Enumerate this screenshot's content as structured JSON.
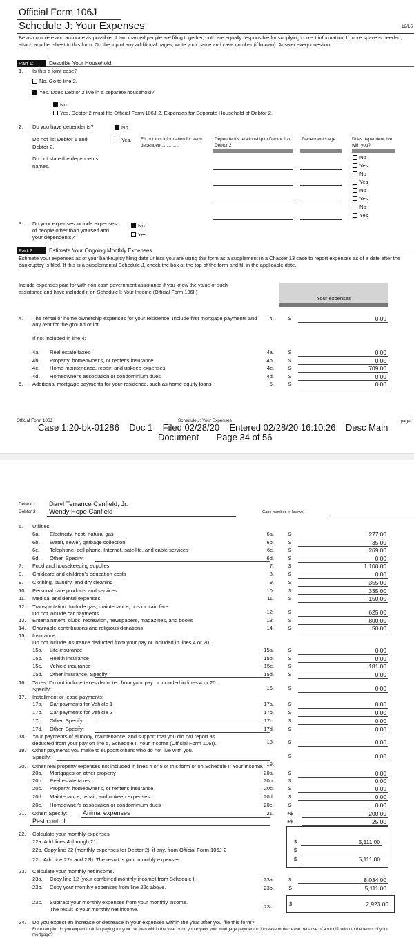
{
  "page1": {
    "form_id": "Official Form 106J",
    "title": "Schedule J: Your Expenses",
    "version": "12/15",
    "intro": "Be as complete and accurate as possible. If two married people are filing together, both are equally responsible for supplying correct information. If more space is needed, attach another sheet to this form. On the top of any additional pages, write your name and case number (if known). Answer every question.",
    "part1": {
      "tag": "Part 1:",
      "title": "Describe Your Household"
    },
    "q1": {
      "num": "1.",
      "text": "Is this a joint case?",
      "opt_no": "No. Go to line 2.",
      "opt_yes": "Yes. Does Debtor 2 live in a separate household?",
      "sub_no": "No",
      "sub_yes": "Yes. Debtor 2 must file Official Form 106J-2, Expenses for Separate Household of Debtor 2."
    },
    "q2": {
      "num": "2.",
      "text": "Do you have dependents?",
      "opt_no": "No",
      "note1": "Do not list Debtor 1 and Debtor 2.",
      "opt_yes": "Yes.",
      "fill": "Fill out this information for each dependent..............",
      "col_rel": "Dependent's relationship to Debtor 1 or Debtor 2",
      "col_age": "Dependent's age",
      "col_live": "Does dependent live with you?",
      "note2": "Do not state the dependents names.",
      "no": "No",
      "yes": "Yes"
    },
    "q3": {
      "num": "3.",
      "text": "Do your expenses include expenses of people other than yourself and your dependents?",
      "opt_no": "No",
      "opt_yes": "Yes"
    },
    "part2": {
      "tag": "Part 2:",
      "title": "Estimate Your Ongoing Monthly Expenses"
    },
    "part2_intro": "Estimate your expenses as of your bankruptcy filing date unless you are using this form as a supplement in a Chapter 13 case to report expenses as of a date after the bankruptcy is filed. If this is a supplemental Schedule J, check the box at the top of the form and fill in the applicable date.",
    "include_note": "Include expenses paid for with non-cash government assistance if you know the value of such assistance and have included it on Schedule I: Your Income (Official Form 106I.)",
    "your_expenses": "Your expenses",
    "not_included": "If not included in line 4:",
    "lines": [
      {
        "num": "4.",
        "label": "The rental or home ownership expenses for your residence. Include first mortgage payments and any rent for the ground or lot.",
        "ref": "4.",
        "cur": "$",
        "amount": "0.00"
      },
      {
        "sub": "4a.",
        "label": "Real estate taxes",
        "ref": "4a.",
        "cur": "$",
        "amount": "0.00"
      },
      {
        "sub": "4b.",
        "label": "Property, homeowner's, or renter's insurance",
        "ref": "4b.",
        "cur": "$",
        "amount": "0.00"
      },
      {
        "sub": "4c.",
        "label": "Home maintenance, repair, and upkeep expenses",
        "ref": "4c.",
        "cur": "$",
        "amount": "709.00"
      },
      {
        "sub": "4d.",
        "label": "Homeowner's association or condominium dues",
        "ref": "4d.",
        "cur": "$",
        "amount": "0.00"
      },
      {
        "num": "5.",
        "label": "Additional mortgage payments for your residence, such as home equity loans",
        "ref": "5.",
        "cur": "$",
        "amount": "0.00"
      }
    ],
    "footer": {
      "left": "Official Form 106J",
      "center": "Schedule J: Your Expenses",
      "right": "page 1"
    },
    "stamp": {
      "line1": "Case 1:20-bk-01286    Doc 1    Filed 02/28/20    Entered 02/28/20 16:10:26    Desc Main",
      "line2": "Document       Page 34 of 56"
    }
  },
  "page2": {
    "debtor1_label": "Debtor 1",
    "debtor1": "Daryl Terrance Canfield, Jr.",
    "debtor2_label": "Debtor 2",
    "debtor2": "Wendy Hope Canfield",
    "case_number_label": "Case number (if known)",
    "lines": [
      {
        "num": "6.",
        "label": "Utilities:"
      },
      {
        "sub": "6a.",
        "label": "Electricity, heat, natural gas",
        "ref": "6a.",
        "cur": "$",
        "amount": "277.00"
      },
      {
        "sub": "6b.",
        "label": "Water, sewer, garbage collection",
        "ref": "6b.",
        "cur": "$",
        "amount": "35.00"
      },
      {
        "sub": "6c.",
        "label": "Telephone, cell phone, Internet, satellite, and cable services",
        "ref": "6c.",
        "cur": "$",
        "amount": "269.00"
      },
      {
        "sub": "6d.",
        "label": "Other. Specify:",
        "spec": true,
        "ref": "6d.",
        "cur": "$",
        "amount": "0.00"
      },
      {
        "num": "7.",
        "label": "Food and housekeeping supplies",
        "ref": "7.",
        "cur": "$",
        "amount": "1,100.00"
      },
      {
        "num": "8.",
        "label": "Childcare and children's education costs",
        "ref": "8.",
        "cur": "$",
        "amount": "0.00"
      },
      {
        "num": "9.",
        "label": "Clothing, laundry, and dry cleaning",
        "ref": "9.",
        "cur": "$",
        "amount": "355.00"
      },
      {
        "num": "10.",
        "label": "Personal care products and services",
        "ref": "10.",
        "cur": "$",
        "amount": "335.00"
      },
      {
        "num": "11.",
        "label": "Medical and dental expenses",
        "ref": "11.",
        "cur": "$",
        "amount": "150.00"
      },
      {
        "num": "12.",
        "label": "Transportation. Include gas, maintenance, bus or train fare.",
        "label2": "Do not include car payments.",
        "ref": "12.",
        "cur": "$",
        "amount": "625.00"
      },
      {
        "num": "13.",
        "label": "Entertainment, clubs, recreation, newspapers, magazines, and books",
        "ref": "13.",
        "cur": "$",
        "amount": "800.00"
      },
      {
        "num": "14.",
        "label": "Charitable contributions and religious donations",
        "ref": "14.",
        "cur": "$",
        "amount": "50.00"
      },
      {
        "num": "15.",
        "label": "Insurance.",
        "label2": "Do not include insurance deducted from your pay or included in lines 4 or 20."
      },
      {
        "sub": "15a.",
        "label": "Life insurance",
        "ref": "15a.",
        "cur": "$",
        "amount": "0.00"
      },
      {
        "sub": "15b.",
        "label": "Health insurance",
        "ref": "15b.",
        "cur": "$",
        "amount": "0.00"
      },
      {
        "sub": "15c.",
        "label": "Vehicle insurance",
        "ref": "15c.",
        "cur": "$",
        "amount": "181.00"
      },
      {
        "sub": "15d.",
        "label": "Other insurance. Specify:",
        "spec": true,
        "ref": "15d.",
        "cur": "$",
        "amount": "0.00"
      },
      {
        "num": "16.",
        "label": "Taxes. Do not include taxes deducted from your pay or included in lines 4 or 20.",
        "label2": "Specify:",
        "spec2": true,
        "ref": "16.",
        "cur": "$",
        "amount": "0.00"
      },
      {
        "num": "17.",
        "label": "Installment or lease payments:"
      },
      {
        "sub": "17a.",
        "label": "Car payments for Vehicle 1",
        "ref": "17a.",
        "cur": "$",
        "amount": "0.00"
      },
      {
        "sub": "17b.",
        "label": "Car payments for Vehicle 2",
        "ref": "17b.",
        "cur": "$",
        "amount": "0.00"
      },
      {
        "sub": "17c.",
        "label": "Other. Specify:",
        "spec": true,
        "ref": "17c.",
        "cur": "$",
        "amount": "0.00"
      },
      {
        "sub": "17d.",
        "label": "Other. Specify:",
        "spec": true,
        "ref": "17d.",
        "cur": "$",
        "amount": "0.00"
      },
      {
        "num": "18.",
        "label": "Your payments of alimony, maintenance, and support that you did not report as",
        "label2": "deducted from your pay on line 5, Schedule I, Your Income (Official Form 106I).",
        "ref": "18.",
        "cur": "$",
        "amount": "0.00"
      },
      {
        "num": "19.",
        "label": "Other payments you make to support others who do not live with you.",
        "label2": "Specify:",
        "spec2": true,
        "ref": "19.",
        "cur": "$",
        "amount": "0.00"
      },
      {
        "num": "20.",
        "label": "Other real property expenses not included in lines 4 or 5 of this form or on Schedule I: Your Income."
      },
      {
        "sub": "20a.",
        "label": "Mortgages on other property",
        "ref": "20a.",
        "cur": "$",
        "amount": "0.00"
      },
      {
        "sub": "20b.",
        "label": "Real estate taxes",
        "ref": "20b.",
        "cur": "$",
        "amount": "0.00"
      },
      {
        "sub": "20c.",
        "label": "Property, homeowner's, or renter's insurance",
        "ref": "20c.",
        "cur": "$",
        "amount": "0.00"
      },
      {
        "sub": "20d.",
        "label": "Maintenance, repair, and upkeep expenses",
        "ref": "20d.",
        "cur": "$",
        "amount": "0.00"
      },
      {
        "sub": "20e.",
        "label": "Homeowner's association or condominium dues",
        "ref": "20e.",
        "cur": "$",
        "amount": "0.00"
      },
      {
        "num": "21.",
        "label": "Other: Specify:",
        "specval": "Animal expenses",
        "ref": "21.",
        "cur": "+$",
        "amount": "200.00"
      },
      {
        "specval2": "Pest control",
        "cur": "+$",
        "amount": "25.00"
      }
    ],
    "l22": {
      "num": "22.",
      "title": "Calculate your monthly expenses",
      "a": "22a. Add lines 4 through 21.",
      "a_amt": "5,111.00",
      "b": "22b. Copy line 22 (monthly expenses for Debtor 2), if any, from Official Form 106J-2",
      "b_amt": "",
      "c": "22c. Add line 22a and 22b.  The result is your monthly expenses.",
      "c_amt": "5,111.00",
      "cur": "$"
    },
    "l23": {
      "num": "23.",
      "title": "Calculate your monthly net income.",
      "a_sub": "23a.",
      "a": "Copy line 12 (your combined monthly income) from Schedule I.",
      "a_ref": "23a.",
      "a_cur": "$",
      "a_amt": "8,034.00",
      "b_sub": "23b.",
      "b": "Copy your monthly expenses from line 22c above.",
      "b_ref": "23b.",
      "b_cur": "-$",
      "b_amt": "5,111.00",
      "c_sub": "23c.",
      "c": "Subtract your monthly expenses from your monthly income.",
      "c2": "The result is your monthly net income.",
      "c_ref": "23c.",
      "c_cur": "$",
      "c_amt": "2,923.00"
    },
    "l24": {
      "num": "24.",
      "title": "Do you expect an increase or decrease in your expenses within the year after you file this form?",
      "note": "For example, do you expect to finish paying for your car loan within the year or do you expect your mortgage payment to increase or decrease because of a modification to the terms of your mortgage?"
    }
  }
}
